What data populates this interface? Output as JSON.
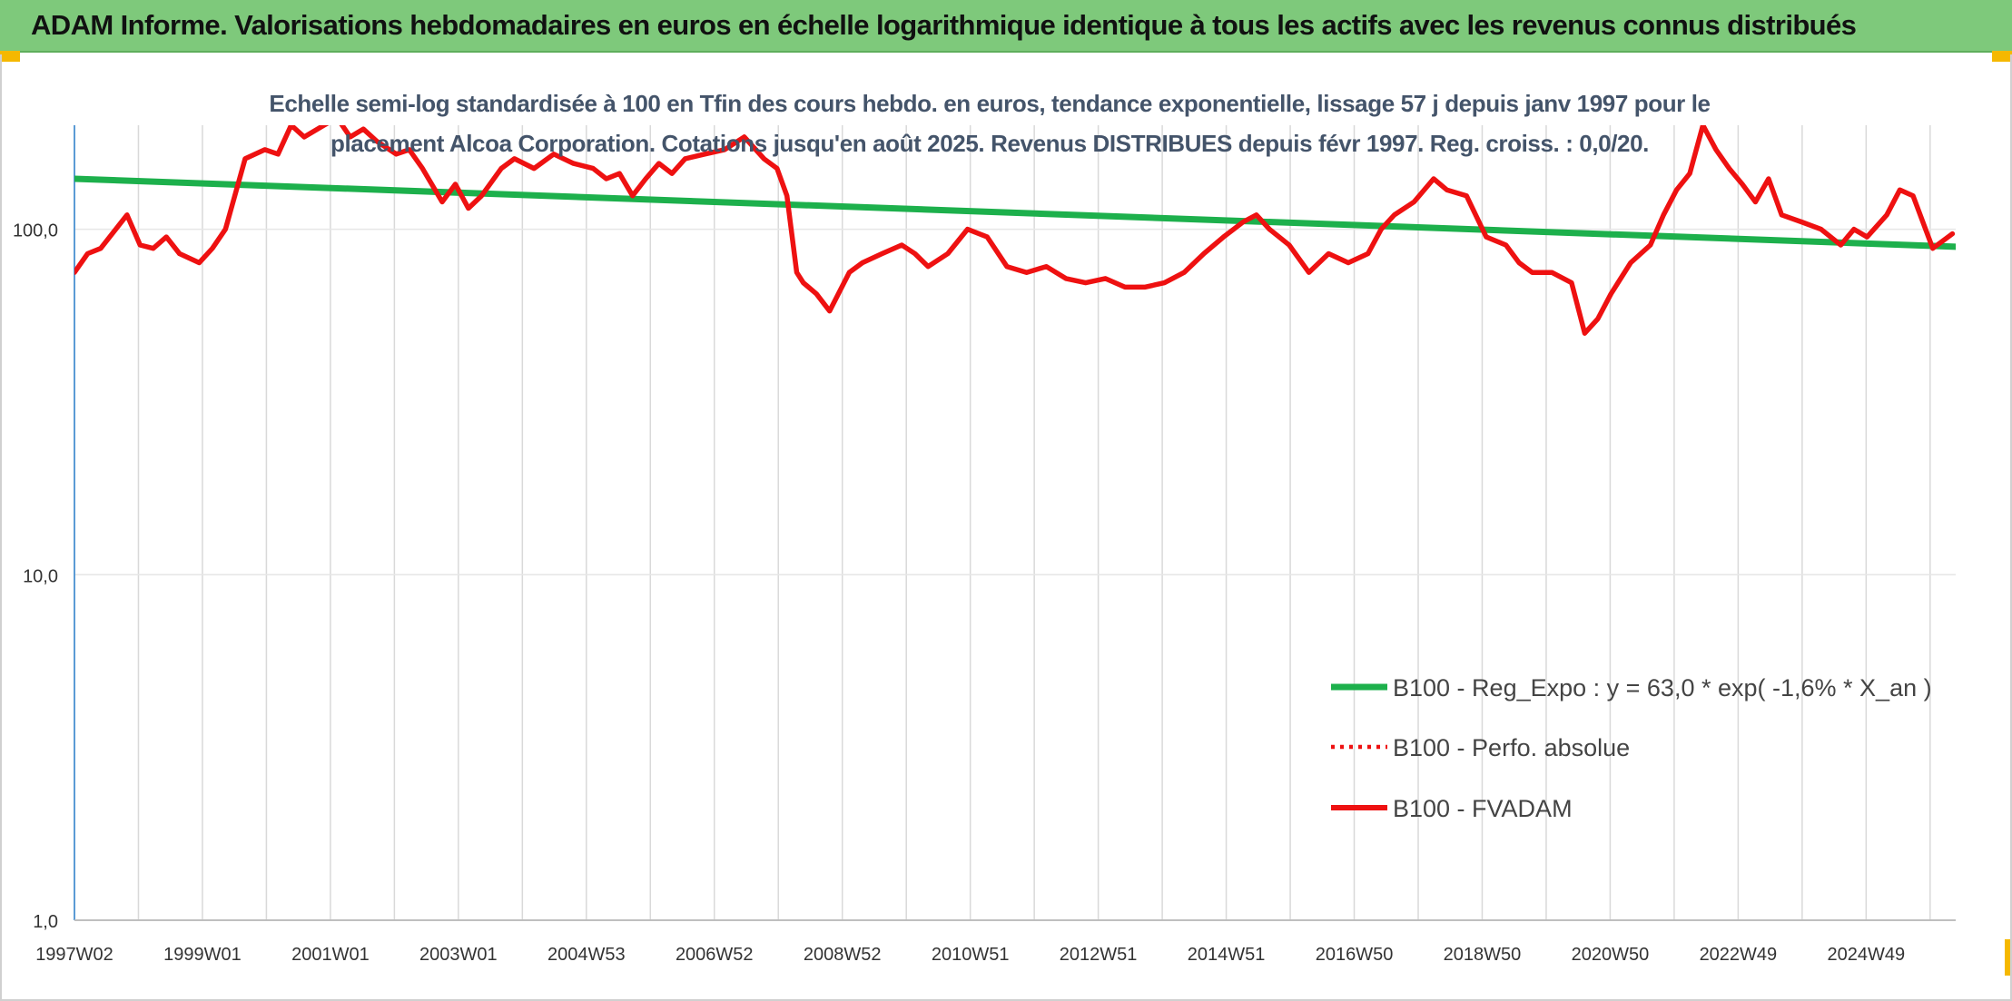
{
  "banner": {
    "title": "ADAM Informe. Valorisations hebdomadaires en euros en échelle logarithmique identique à tous les actifs avec les revenus connus distribués"
  },
  "chart_data": {
    "type": "line",
    "subtitle": "Echelle semi-log standardisée à 100 en Tfin des cours hebdo. en euros, tendance exponentielle, lissage 57 j depuis janv 1997 pour le placement Alcoa Corporation. Cotations jusqu'en août 2025. Revenus DISTRIBUES depuis févr 1997. Reg. croiss. : 0,0/20.",
    "y_scale": "log",
    "ylim": [
      1,
      200
    ],
    "y_ticks": [
      1,
      10,
      100
    ],
    "y_tick_labels": [
      "1,0",
      "10,0",
      "100,0"
    ],
    "xlim": [
      1997.0,
      2025.65
    ],
    "x_tick_labels": [
      "1997W02",
      "1999W01",
      "2001W01",
      "2003W01",
      "2004W53",
      "2006W52",
      "2008W52",
      "2010W51",
      "2012W51",
      "2014W51",
      "2016W50",
      "2018W50",
      "2020W50",
      "2022W49",
      "2024W49"
    ],
    "grid": "vertical",
    "legend_position": "bottom-right",
    "colors": {
      "trend": "#1db04c",
      "fvadam": "#ee1111",
      "perfo": "#ee1111",
      "axis": "#5b9bd5",
      "grid": "#d9d9d9"
    },
    "series": [
      {
        "name": "B100 - Reg_Expo : y = 63,0 * exp( -1,6% *  X_an )",
        "style": "solid-green",
        "x": [
          1997.0,
          2025.65
        ],
        "y": [
          140,
          89
        ]
      },
      {
        "name": "B100 - Perfo. absolue",
        "style": "dotted-red",
        "x": [],
        "y": []
      },
      {
        "name": "B100 - FVADAM",
        "style": "solid-red",
        "x": [
          1997.0,
          1997.2,
          1997.4,
          1997.8,
          1998.0,
          1998.2,
          1998.4,
          1998.6,
          1998.9,
          1999.1,
          1999.3,
          1999.6,
          1999.9,
          2000.1,
          2000.3,
          2000.5,
          2000.8,
          2001.0,
          2001.2,
          2001.4,
          2001.6,
          2001.9,
          2002.1,
          2002.3,
          2002.6,
          2002.8,
          2003.0,
          2003.2,
          2003.5,
          2003.7,
          2004.0,
          2004.3,
          2004.6,
          2004.9,
          2005.1,
          2005.3,
          2005.5,
          2005.7,
          2005.9,
          2006.1,
          2006.3,
          2006.6,
          2006.9,
          2007.2,
          2007.5,
          2007.7,
          2007.85,
          2008.0,
          2008.1,
          2008.3,
          2008.5,
          2008.8,
          2009.0,
          2009.3,
          2009.6,
          2009.8,
          2010.0,
          2010.3,
          2010.6,
          2010.9,
          2011.2,
          2011.5,
          2011.8,
          2012.1,
          2012.4,
          2012.7,
          2013.0,
          2013.3,
          2013.6,
          2013.9,
          2014.2,
          2014.5,
          2014.8,
          2015.0,
          2015.2,
          2015.5,
          2015.8,
          2016.1,
          2016.4,
          2016.7,
          2016.9,
          2017.1,
          2017.4,
          2017.7,
          2017.9,
          2018.2,
          2018.5,
          2018.8,
          2019.0,
          2019.2,
          2019.5,
          2019.8,
          2020.0,
          2020.2,
          2020.4,
          2020.7,
          2021.0,
          2021.2,
          2021.4,
          2021.6,
          2021.8,
          2022.0,
          2022.2,
          2022.4,
          2022.6,
          2022.8,
          2023.0,
          2023.3,
          2023.6,
          2023.9,
          2024.1,
          2024.3,
          2024.6,
          2024.8,
          2025.0,
          2025.3,
          2025.6
        ],
        "y": [
          75,
          85,
          88,
          110,
          90,
          88,
          95,
          85,
          80,
          88,
          100,
          160,
          170,
          165,
          200,
          185,
          200,
          210,
          185,
          195,
          180,
          165,
          170,
          150,
          120,
          135,
          115,
          125,
          150,
          160,
          150,
          165,
          155,
          150,
          140,
          145,
          125,
          140,
          155,
          145,
          160,
          165,
          170,
          185,
          160,
          150,
          125,
          75,
          70,
          65,
          58,
          75,
          80,
          85,
          90,
          85,
          78,
          85,
          100,
          95,
          78,
          75,
          78,
          72,
          70,
          72,
          68,
          68,
          70,
          75,
          85,
          95,
          105,
          110,
          100,
          90,
          75,
          85,
          80,
          85,
          100,
          110,
          120,
          140,
          130,
          125,
          95,
          90,
          80,
          75,
          75,
          70,
          50,
          55,
          65,
          80,
          90,
          110,
          130,
          145,
          200,
          170,
          150,
          135,
          120,
          140,
          110,
          105,
          100,
          90,
          100,
          95,
          110,
          130,
          125,
          88,
          97
        ]
      }
    ]
  }
}
